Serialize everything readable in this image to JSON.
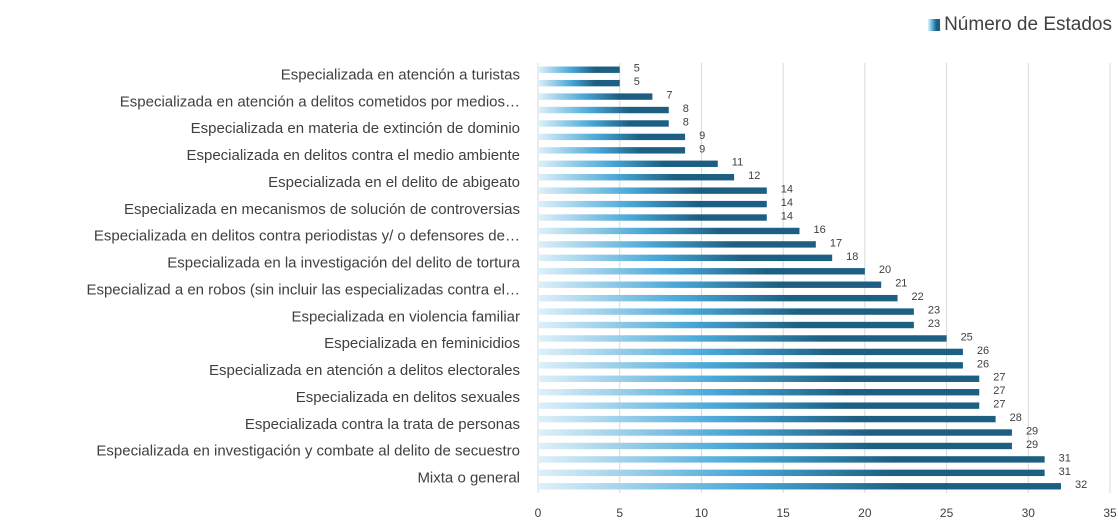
{
  "chart_data": {
    "type": "bar",
    "orientation": "horizontal",
    "categories": [
      "Especializada en atención a turistas",
      null,
      "Especializada en atención a delitos cometidos por medios…",
      null,
      "Especializada en materia de extinción de dominio",
      null,
      "Especializada en delitos contra el medio ambiente",
      null,
      "Especializada en el delito de abigeato",
      null,
      "Especializada en mecanismos de solución de controversias",
      null,
      "Especializada en delitos contra periodistas y/ o defensores de…",
      null,
      "Especializada en la investigación del delito de tortura",
      null,
      "Especializad a en robos (sin incluir las especializadas contra el…",
      null,
      "Especializada en violencia familiar",
      null,
      "Especializada en feminicidios",
      null,
      "Especializada en atención a delitos electorales",
      null,
      "Especializada en delitos sexuales",
      null,
      "Especializada contra la trata de personas",
      null,
      "Especializada en investigación y combate al delito de secuestro",
      null,
      "Mixta o general",
      null
    ],
    "series": [
      {
        "name": "Número de Estados",
        "color": "#1c5f82",
        "values": [
          5,
          5,
          7,
          8,
          8,
          9,
          9,
          11,
          12,
          14,
          14,
          14,
          16,
          17,
          18,
          20,
          21,
          22,
          23,
          23,
          25,
          26,
          26,
          27,
          27,
          27,
          28,
          29,
          29,
          31,
          31,
          32
        ]
      }
    ],
    "xlim": [
      0,
      35
    ],
    "xticks": [
      0,
      5,
      10,
      15,
      20,
      25,
      30,
      35
    ],
    "grid": true,
    "legend": "top-right"
  }
}
